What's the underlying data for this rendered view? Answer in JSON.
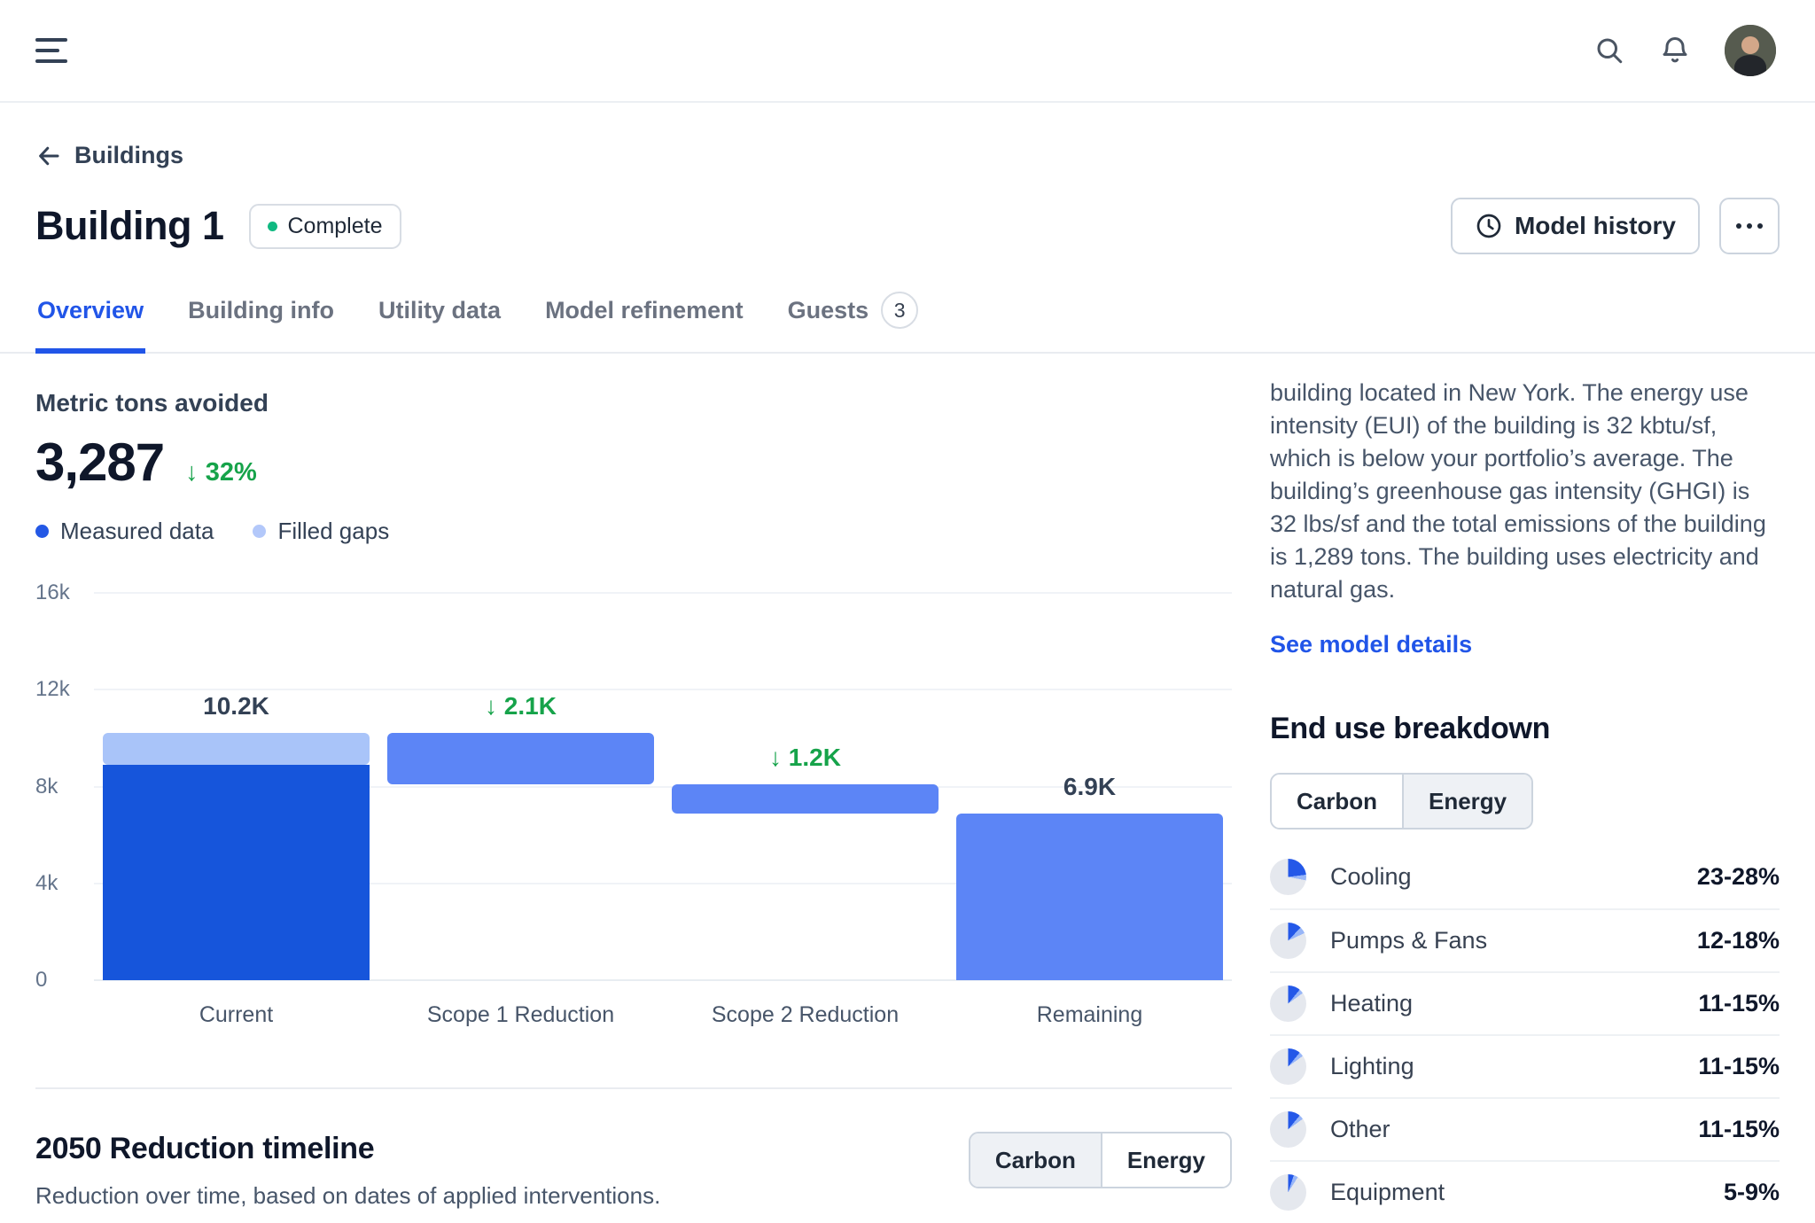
{
  "topbar": {
    "icons": [
      "menu-icon",
      "search-icon",
      "bell-icon",
      "avatar"
    ]
  },
  "breadcrumb": {
    "back_label": "Buildings",
    "icon": "arrow-left-icon"
  },
  "header": {
    "title": "Building 1",
    "status_label": "Complete",
    "status_color": "#10b981",
    "model_history_label": "Model history",
    "model_history_icon": "clock-icon",
    "more_icon": "ellipsis-icon"
  },
  "tabs": [
    {
      "label": "Overview",
      "active": true
    },
    {
      "label": "Building info",
      "active": false
    },
    {
      "label": "Utility data",
      "active": false
    },
    {
      "label": "Model refinement",
      "active": false
    },
    {
      "label": "Guests",
      "active": false,
      "badge": "3"
    }
  ],
  "metric": {
    "label": "Metric tons avoided",
    "value": "3,287",
    "delta": "↓ 32%",
    "delta_color": "#16a34a"
  },
  "legend": [
    {
      "label": "Measured data",
      "color": "#2458e5"
    },
    {
      "label": "Filled gaps",
      "color": "#b3c8fa"
    }
  ],
  "chart_data": {
    "type": "bar",
    "subtype": "waterfall",
    "title": "Metric tons avoided",
    "categories": [
      "Current",
      "Scope 1 Reduction",
      "Scope 2 Reduction",
      "Remaining"
    ],
    "ylim": [
      0,
      16000
    ],
    "y_ticks": [
      {
        "value": 16000,
        "label": "16k"
      },
      {
        "value": 12000,
        "label": "12k"
      },
      {
        "value": 8000,
        "label": "8k"
      },
      {
        "value": 4000,
        "label": "4k"
      },
      {
        "value": 0,
        "label": "0"
      }
    ],
    "grid": true,
    "bars": [
      {
        "category": "Current",
        "total": 10200,
        "label": "10.2K",
        "label_style": "value",
        "segments": [
          {
            "name": "measured-data",
            "from": 0,
            "to": 8900,
            "color": "#1655db"
          },
          {
            "name": "filled-gaps",
            "from": 8900,
            "to": 10200,
            "color": "#a9c4f9"
          }
        ]
      },
      {
        "category": "Scope 1 Reduction",
        "change": -2100,
        "label": "↓ 2.1K",
        "label_style": "reduction",
        "segments": [
          {
            "name": "scope-1-reduction",
            "from": 8100,
            "to": 10200,
            "color": "#5c85f6"
          }
        ]
      },
      {
        "category": "Scope 2 Reduction",
        "change": -1200,
        "label": "↓ 1.2K",
        "label_style": "reduction",
        "segments": [
          {
            "name": "scope-2-reduction",
            "from": 6900,
            "to": 8100,
            "color": "#5c85f6"
          }
        ]
      },
      {
        "category": "Remaining",
        "total": 6900,
        "label": "6.9K",
        "label_style": "value",
        "segments": [
          {
            "name": "remaining",
            "from": 0,
            "to": 6900,
            "color": "#5c85f6"
          }
        ]
      }
    ]
  },
  "insight": {
    "text": "building located in New York. The energy use intensity (EUI) of the building is 32 kbtu/sf, which is below your portfolio’s average. The building’s greenhouse gas intensity (GHGI) is 32 lbs/sf and the total emissions of the building is 1,289 tons. The building uses electricity and natural gas.",
    "link_label": "See model details",
    "link_color": "#2155e8"
  },
  "end_use": {
    "title": "End use breakdown",
    "toggle": {
      "options": [
        {
          "label": "Carbon",
          "filled": false
        },
        {
          "label": "Energy",
          "filled": true
        }
      ]
    },
    "pie_colors": {
      "low": "#2458e8",
      "high": "#98b6f8",
      "rest": "#e5e8ee"
    },
    "rows": [
      {
        "label": "Cooling",
        "value": "23-28%",
        "low": 23,
        "high": 28
      },
      {
        "label": "Pumps & Fans",
        "value": "12-18%",
        "low": 12,
        "high": 18
      },
      {
        "label": "Heating",
        "value": "11-15%",
        "low": 11,
        "high": 15
      },
      {
        "label": "Lighting",
        "value": "11-15%",
        "low": 11,
        "high": 15
      },
      {
        "label": "Other",
        "value": "11-15%",
        "low": 11,
        "high": 15
      },
      {
        "label": "Equipment",
        "value": "5-9%",
        "low": 5,
        "high": 9
      }
    ]
  },
  "timeline": {
    "title": "2050 Reduction timeline",
    "subtitle": "Reduction over time, based on dates of applied interventions.",
    "toggle": {
      "options": [
        {
          "label": "Carbon",
          "filled": true
        },
        {
          "label": "Energy",
          "filled": false
        }
      ]
    }
  }
}
